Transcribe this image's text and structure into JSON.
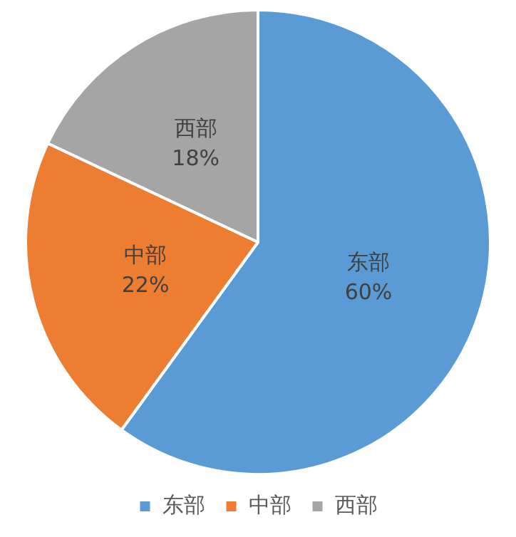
{
  "chart_data": {
    "type": "pie",
    "categories": [
      "东部",
      "中部",
      "西部"
    ],
    "values": [
      60,
      22,
      18
    ],
    "colors": [
      "#5b9bd5",
      "#ed7d31",
      "#a5a5a5"
    ],
    "value_labels": [
      "60%",
      "22%",
      "18%"
    ],
    "legend": "bottom"
  }
}
